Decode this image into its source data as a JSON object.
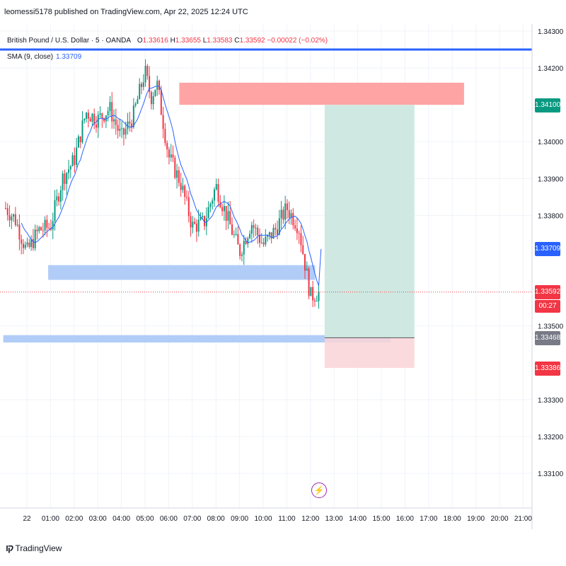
{
  "header": {
    "publish_text": "leomessi5178 published on TradingView.com, Apr 22, 2025 12:24 UTC"
  },
  "legend": {
    "symbol": "British Pound / U.S. Dollar · 5 · OANDA",
    "o_label": "O",
    "o_value": "1.33616",
    "h_label": "H",
    "h_value": "1.33655",
    "l_label": "L",
    "l_value": "1.33583",
    "c_label": "C",
    "c_value": "1.33592",
    "change": "−0.00022 (−0.02%)",
    "sma_label": "SMA (9, close)",
    "sma_value": "1.33709"
  },
  "price_tags": {
    "target": "1.34100",
    "sma": "1.33709",
    "last": "1.33592",
    "countdown": "00:27",
    "entry": "1.33468",
    "stop": "1.33386"
  },
  "footer": {
    "brand": "TradingView",
    "logo": "tradingview-logo"
  },
  "icons": {
    "event": "lightning-event-icon"
  },
  "colors": {
    "up": "#089981",
    "down": "#f23645",
    "sma": "#2962ff",
    "resistance_zone": "#ffa4a4",
    "support_zone": "#b1cdf7",
    "profit_zone": "#cfe9e2",
    "loss_zone": "#fad4d8",
    "horizontal_line": "#2962ff"
  },
  "chart_data": {
    "type": "candlestick",
    "symbol": "GBPUSD",
    "interval": "5",
    "y_ticks": [
      "1.34300",
      "1.34200",
      "1.34000",
      "1.33900",
      "1.33800",
      "1.33500",
      "1.33300",
      "1.33200",
      "1.33100"
    ],
    "y_tick_values": [
      1.343,
      1.342,
      1.34,
      1.339,
      1.338,
      1.335,
      1.333,
      1.332,
      1.331
    ],
    "x_ticks": [
      "22",
      "01:00",
      "02:00",
      "03:00",
      "04:00",
      "05:00",
      "06:00",
      "07:00",
      "08:00",
      "09:00",
      "10:00",
      "11:00",
      "12:00",
      "13:00",
      "14:00",
      "15:00",
      "16:00",
      "17:00",
      "18:00",
      "19:00",
      "20:00",
      "21:00"
    ],
    "ylim": [
      1.3303,
      1.3438
    ],
    "grid": true,
    "horizontal_line": 1.3425,
    "last_price": 1.33592,
    "sma_last": 1.33709,
    "zones": {
      "resistance": {
        "from": 1.341,
        "to": 1.3416
      },
      "support_1": {
        "from": 1.33625,
        "to": 1.33665
      },
      "support_2": {
        "from": 1.33455,
        "to": 1.33475
      }
    },
    "position": {
      "entry": 1.33468,
      "target": 1.341,
      "stop": 1.33386
    },
    "close_path_hours": [
      -0.9,
      -0.5,
      0,
      0.5,
      1,
      1.5,
      2,
      2.5,
      3,
      3.5,
      4,
      4.5,
      5,
      5.25,
      5.5,
      6,
      6.5,
      7,
      7.5,
      8,
      8.5,
      9,
      9.5,
      10,
      10.5,
      11,
      11.5,
      12,
      12.4
    ],
    "close_path_values": [
      1.3382,
      1.3379,
      1.337,
      1.3376,
      1.3377,
      1.339,
      1.3395,
      1.3408,
      1.3406,
      1.3409,
      1.3401,
      1.3407,
      1.3419,
      1.3412,
      1.3416,
      1.3396,
      1.3389,
      1.3377,
      1.3378,
      1.3388,
      1.3379,
      1.337,
      1.3378,
      1.3372,
      1.3376,
      1.3382,
      1.3377,
      1.3358,
      1.33592
    ]
  }
}
